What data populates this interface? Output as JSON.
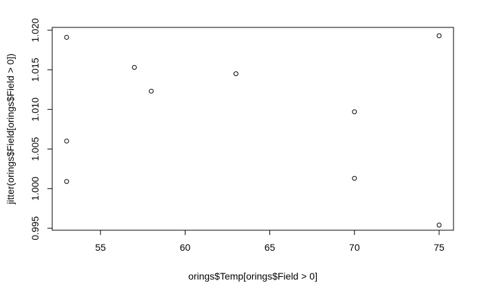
{
  "chart_data": {
    "type": "scatter",
    "title": "",
    "xlabel": "orings$Temp[orings$Field > 0]",
    "ylabel": "jitter(orings$Field[orings$Field > 0])",
    "xlim": [
      52.15,
      75.85
    ],
    "ylim": [
      0.99475,
      1.02035
    ],
    "x_ticks": [
      55,
      60,
      65,
      70,
      75
    ],
    "y_ticks": [
      0.995,
      1.0,
      1.005,
      1.01,
      1.015,
      1.02
    ],
    "x_tick_labels": [
      "55",
      "60",
      "65",
      "70",
      "75"
    ],
    "y_tick_labels": [
      "0.995",
      "1.000",
      "1.005",
      "1.010",
      "1.015",
      "1.020"
    ],
    "grid": false,
    "points": [
      {
        "x": 53,
        "y": 1.0191
      },
      {
        "x": 53,
        "y": 1.006
      },
      {
        "x": 53,
        "y": 1.0009
      },
      {
        "x": 57,
        "y": 1.0153
      },
      {
        "x": 58,
        "y": 1.0123
      },
      {
        "x": 63,
        "y": 1.0145
      },
      {
        "x": 70,
        "y": 1.0097
      },
      {
        "x": 70,
        "y": 1.0013
      },
      {
        "x": 75,
        "y": 1.0193
      },
      {
        "x": 75,
        "y": 0.9954
      }
    ]
  }
}
